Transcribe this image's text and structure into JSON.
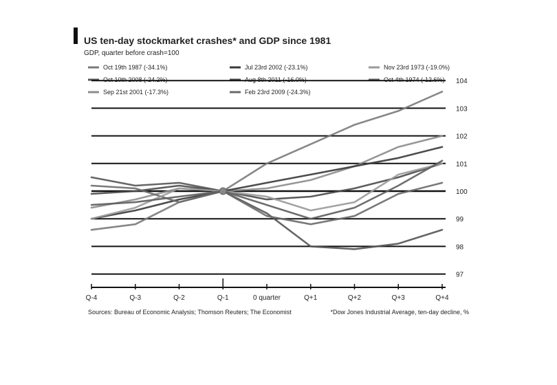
{
  "chart_data": {
    "type": "line",
    "title": "US ten-day stockmarket crashes* and GDP since 1981",
    "subtitle": "GDP, quarter before crash=100",
    "source": "Sources: Bureau of Economic Analysis; Thomson Reuters; The Economist",
    "footnote": "*Dow Jones Industrial Average, ten-day decline, %",
    "categories": [
      "Q-4",
      "Q-3",
      "Q-2",
      "Q-1",
      "0 quarter",
      "Q+1",
      "Q+2",
      "Q+3",
      "Q+4"
    ],
    "y_ticks": [
      "104",
      "103",
      "102",
      "101",
      "100",
      "99",
      "98",
      "97"
    ],
    "ylim": [
      96.5,
      104
    ],
    "grid": true,
    "legend_placement": "top",
    "series": [
      {
        "name": "Oct 19th 1987 (-34.1%)",
        "color": "#7a7a7a",
        "values": [
          98.6,
          98.8,
          99.6,
          100.0,
          101.0,
          101.7,
          102.4,
          102.9,
          103.6
        ]
      },
      {
        "name": "Oct 10th 2008 (-24.2%)",
        "color": "#555555",
        "values": [
          100.5,
          100.2,
          100.3,
          100.0,
          99.2,
          98.0,
          97.9,
          98.1,
          98.6
        ]
      },
      {
        "name": "Sep 21st 2001 (-17.3%)",
        "color": "#8c8c8c",
        "values": [
          99.4,
          99.7,
          100.1,
          100.0,
          100.1,
          100.4,
          100.9,
          101.6,
          102.0
        ]
      },
      {
        "name": "Jul 23rd 2002 (-23.1%)",
        "color": "#3a3a3a",
        "values": [
          99.0,
          99.3,
          99.7,
          100.0,
          100.3,
          100.6,
          100.9,
          101.2,
          101.6
        ]
      },
      {
        "name": "Aug 8th 2011 (-16.0%)",
        "color": "#4a4a4a",
        "values": [
          99.9,
          100.0,
          100.2,
          100.0,
          99.7,
          99.8,
          100.1,
          100.5,
          101.0
        ]
      },
      {
        "name": "Feb 23rd 2009 (-24.3%)",
        "color": "#6a6a6a",
        "values": [
          100.2,
          100.1,
          99.6,
          100.0,
          99.1,
          98.8,
          99.1,
          99.9,
          100.3
        ]
      },
      {
        "name": "Nov 23rd 1973 (-19.0%)",
        "color": "#9a9a9a",
        "values": [
          99.0,
          99.4,
          100.1,
          100.0,
          99.8,
          99.3,
          99.6,
          100.6,
          101.0
        ]
      },
      {
        "name": "Oct 4th 1974 (-12.6%)",
        "color": "#5e5e5e",
        "values": [
          99.5,
          99.6,
          99.8,
          100.0,
          99.5,
          99.0,
          99.4,
          100.2,
          101.1
        ]
      }
    ]
  }
}
